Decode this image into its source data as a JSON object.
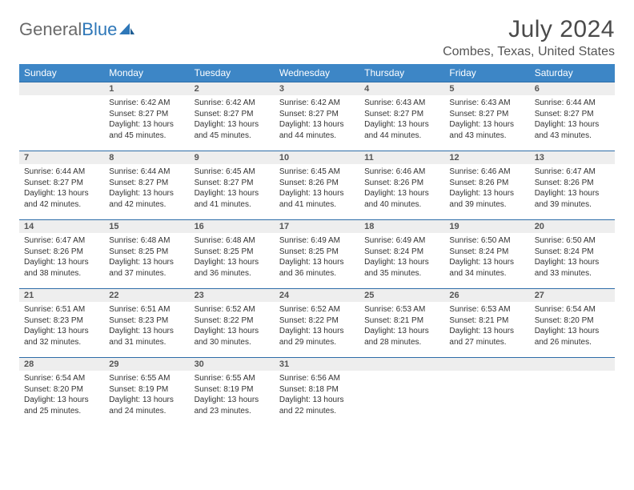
{
  "brand": {
    "general": "General",
    "blue": "Blue"
  },
  "title": {
    "month": "July 2024",
    "location": "Combes, Texas, United States"
  },
  "colors": {
    "header_bg": "#3d86c6",
    "daynum_bg": "#eeeeee",
    "daynum_border": "#2e6da8",
    "text": "#333333"
  },
  "day_names": [
    "Sunday",
    "Monday",
    "Tuesday",
    "Wednesday",
    "Thursday",
    "Friday",
    "Saturday"
  ],
  "weeks": [
    [
      {
        "n": "",
        "sr": "",
        "ss": "",
        "dl": ""
      },
      {
        "n": "1",
        "sr": "Sunrise: 6:42 AM",
        "ss": "Sunset: 8:27 PM",
        "dl": "Daylight: 13 hours and 45 minutes."
      },
      {
        "n": "2",
        "sr": "Sunrise: 6:42 AM",
        "ss": "Sunset: 8:27 PM",
        "dl": "Daylight: 13 hours and 45 minutes."
      },
      {
        "n": "3",
        "sr": "Sunrise: 6:42 AM",
        "ss": "Sunset: 8:27 PM",
        "dl": "Daylight: 13 hours and 44 minutes."
      },
      {
        "n": "4",
        "sr": "Sunrise: 6:43 AM",
        "ss": "Sunset: 8:27 PM",
        "dl": "Daylight: 13 hours and 44 minutes."
      },
      {
        "n": "5",
        "sr": "Sunrise: 6:43 AM",
        "ss": "Sunset: 8:27 PM",
        "dl": "Daylight: 13 hours and 43 minutes."
      },
      {
        "n": "6",
        "sr": "Sunrise: 6:44 AM",
        "ss": "Sunset: 8:27 PM",
        "dl": "Daylight: 13 hours and 43 minutes."
      }
    ],
    [
      {
        "n": "7",
        "sr": "Sunrise: 6:44 AM",
        "ss": "Sunset: 8:27 PM",
        "dl": "Daylight: 13 hours and 42 minutes."
      },
      {
        "n": "8",
        "sr": "Sunrise: 6:44 AM",
        "ss": "Sunset: 8:27 PM",
        "dl": "Daylight: 13 hours and 42 minutes."
      },
      {
        "n": "9",
        "sr": "Sunrise: 6:45 AM",
        "ss": "Sunset: 8:27 PM",
        "dl": "Daylight: 13 hours and 41 minutes."
      },
      {
        "n": "10",
        "sr": "Sunrise: 6:45 AM",
        "ss": "Sunset: 8:26 PM",
        "dl": "Daylight: 13 hours and 41 minutes."
      },
      {
        "n": "11",
        "sr": "Sunrise: 6:46 AM",
        "ss": "Sunset: 8:26 PM",
        "dl": "Daylight: 13 hours and 40 minutes."
      },
      {
        "n": "12",
        "sr": "Sunrise: 6:46 AM",
        "ss": "Sunset: 8:26 PM",
        "dl": "Daylight: 13 hours and 39 minutes."
      },
      {
        "n": "13",
        "sr": "Sunrise: 6:47 AM",
        "ss": "Sunset: 8:26 PM",
        "dl": "Daylight: 13 hours and 39 minutes."
      }
    ],
    [
      {
        "n": "14",
        "sr": "Sunrise: 6:47 AM",
        "ss": "Sunset: 8:26 PM",
        "dl": "Daylight: 13 hours and 38 minutes."
      },
      {
        "n": "15",
        "sr": "Sunrise: 6:48 AM",
        "ss": "Sunset: 8:25 PM",
        "dl": "Daylight: 13 hours and 37 minutes."
      },
      {
        "n": "16",
        "sr": "Sunrise: 6:48 AM",
        "ss": "Sunset: 8:25 PM",
        "dl": "Daylight: 13 hours and 36 minutes."
      },
      {
        "n": "17",
        "sr": "Sunrise: 6:49 AM",
        "ss": "Sunset: 8:25 PM",
        "dl": "Daylight: 13 hours and 36 minutes."
      },
      {
        "n": "18",
        "sr": "Sunrise: 6:49 AM",
        "ss": "Sunset: 8:24 PM",
        "dl": "Daylight: 13 hours and 35 minutes."
      },
      {
        "n": "19",
        "sr": "Sunrise: 6:50 AM",
        "ss": "Sunset: 8:24 PM",
        "dl": "Daylight: 13 hours and 34 minutes."
      },
      {
        "n": "20",
        "sr": "Sunrise: 6:50 AM",
        "ss": "Sunset: 8:24 PM",
        "dl": "Daylight: 13 hours and 33 minutes."
      }
    ],
    [
      {
        "n": "21",
        "sr": "Sunrise: 6:51 AM",
        "ss": "Sunset: 8:23 PM",
        "dl": "Daylight: 13 hours and 32 minutes."
      },
      {
        "n": "22",
        "sr": "Sunrise: 6:51 AM",
        "ss": "Sunset: 8:23 PM",
        "dl": "Daylight: 13 hours and 31 minutes."
      },
      {
        "n": "23",
        "sr": "Sunrise: 6:52 AM",
        "ss": "Sunset: 8:22 PM",
        "dl": "Daylight: 13 hours and 30 minutes."
      },
      {
        "n": "24",
        "sr": "Sunrise: 6:52 AM",
        "ss": "Sunset: 8:22 PM",
        "dl": "Daylight: 13 hours and 29 minutes."
      },
      {
        "n": "25",
        "sr": "Sunrise: 6:53 AM",
        "ss": "Sunset: 8:21 PM",
        "dl": "Daylight: 13 hours and 28 minutes."
      },
      {
        "n": "26",
        "sr": "Sunrise: 6:53 AM",
        "ss": "Sunset: 8:21 PM",
        "dl": "Daylight: 13 hours and 27 minutes."
      },
      {
        "n": "27",
        "sr": "Sunrise: 6:54 AM",
        "ss": "Sunset: 8:20 PM",
        "dl": "Daylight: 13 hours and 26 minutes."
      }
    ],
    [
      {
        "n": "28",
        "sr": "Sunrise: 6:54 AM",
        "ss": "Sunset: 8:20 PM",
        "dl": "Daylight: 13 hours and 25 minutes."
      },
      {
        "n": "29",
        "sr": "Sunrise: 6:55 AM",
        "ss": "Sunset: 8:19 PM",
        "dl": "Daylight: 13 hours and 24 minutes."
      },
      {
        "n": "30",
        "sr": "Sunrise: 6:55 AM",
        "ss": "Sunset: 8:19 PM",
        "dl": "Daylight: 13 hours and 23 minutes."
      },
      {
        "n": "31",
        "sr": "Sunrise: 6:56 AM",
        "ss": "Sunset: 8:18 PM",
        "dl": "Daylight: 13 hours and 22 minutes."
      },
      {
        "n": "",
        "sr": "",
        "ss": "",
        "dl": ""
      },
      {
        "n": "",
        "sr": "",
        "ss": "",
        "dl": ""
      },
      {
        "n": "",
        "sr": "",
        "ss": "",
        "dl": ""
      }
    ]
  ]
}
